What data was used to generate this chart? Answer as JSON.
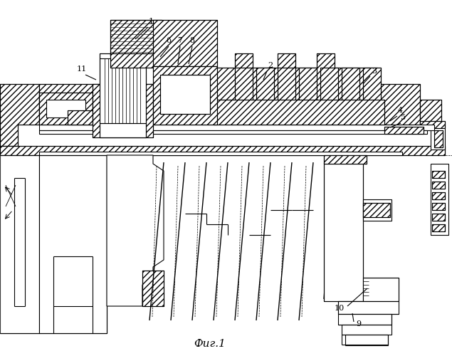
{
  "caption": "Фиг.1",
  "bg": "#ffffff",
  "lc": "#000000",
  "lw": 0.8,
  "fig_w": 6.35,
  "fig_h": 5.0,
  "dpi": 100
}
